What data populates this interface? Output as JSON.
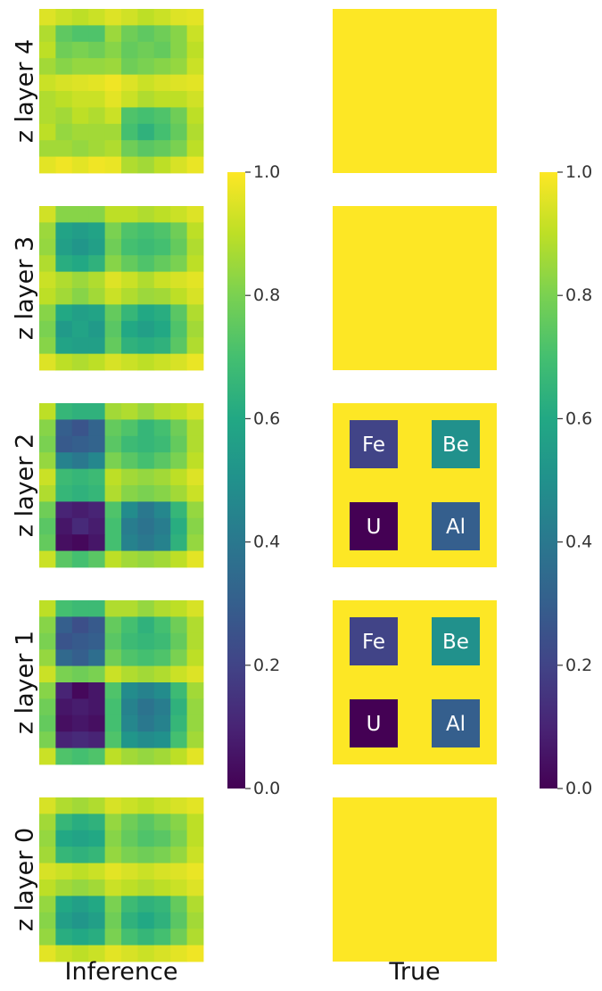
{
  "chart_data": {
    "type": "heatmap",
    "colormap": "viridis",
    "grid_size": [
      10,
      10
    ],
    "column_labels": [
      "Inference",
      "True"
    ],
    "layers": [
      {
        "label": "z layer 4",
        "inference": [
          [
            0.95,
            0.92,
            0.9,
            0.92,
            0.95,
            0.93,
            0.9,
            0.92,
            0.95,
            0.96
          ],
          [
            0.88,
            0.75,
            0.72,
            0.72,
            0.85,
            0.78,
            0.75,
            0.78,
            0.82,
            0.92
          ],
          [
            0.9,
            0.78,
            0.8,
            0.78,
            0.82,
            0.76,
            0.78,
            0.76,
            0.82,
            0.9
          ],
          [
            0.86,
            0.82,
            0.84,
            0.84,
            0.85,
            0.78,
            0.8,
            0.82,
            0.84,
            0.92
          ],
          [
            0.92,
            0.94,
            0.95,
            0.96,
            0.98,
            0.95,
            0.92,
            0.94,
            0.95,
            0.96
          ],
          [
            0.88,
            0.9,
            0.92,
            0.92,
            0.96,
            0.92,
            0.88,
            0.9,
            0.9,
            0.93
          ],
          [
            0.88,
            0.86,
            0.9,
            0.88,
            0.92,
            0.72,
            0.7,
            0.72,
            0.78,
            0.9
          ],
          [
            0.9,
            0.84,
            0.86,
            0.86,
            0.86,
            0.7,
            0.64,
            0.7,
            0.76,
            0.88
          ],
          [
            0.86,
            0.86,
            0.84,
            0.86,
            0.88,
            0.78,
            0.74,
            0.76,
            0.8,
            0.9
          ],
          [
            0.96,
            0.98,
            0.96,
            0.98,
            0.97,
            0.88,
            0.86,
            0.9,
            0.94,
            0.97
          ]
        ],
        "true": {
          "background": 1.0,
          "blocks": []
        }
      },
      {
        "label": "z layer 3",
        "inference": [
          [
            0.93,
            0.82,
            0.82,
            0.82,
            0.9,
            0.9,
            0.88,
            0.9,
            0.92,
            0.95
          ],
          [
            0.85,
            0.58,
            0.55,
            0.58,
            0.8,
            0.72,
            0.7,
            0.72,
            0.78,
            0.9
          ],
          [
            0.84,
            0.56,
            0.52,
            0.56,
            0.78,
            0.7,
            0.68,
            0.7,
            0.76,
            0.88
          ],
          [
            0.88,
            0.62,
            0.6,
            0.64,
            0.82,
            0.76,
            0.72,
            0.76,
            0.8,
            0.9
          ],
          [
            0.92,
            0.88,
            0.85,
            0.88,
            0.95,
            0.92,
            0.88,
            0.92,
            0.94,
            0.96
          ],
          [
            0.9,
            0.86,
            0.82,
            0.86,
            0.92,
            0.88,
            0.85,
            0.86,
            0.9,
            0.94
          ],
          [
            0.82,
            0.6,
            0.56,
            0.58,
            0.76,
            0.66,
            0.6,
            0.62,
            0.74,
            0.88
          ],
          [
            0.8,
            0.54,
            0.58,
            0.54,
            0.74,
            0.6,
            0.56,
            0.6,
            0.72,
            0.86
          ],
          [
            0.82,
            0.58,
            0.56,
            0.56,
            0.76,
            0.64,
            0.62,
            0.64,
            0.74,
            0.88
          ],
          [
            0.95,
            0.9,
            0.88,
            0.9,
            0.94,
            0.92,
            0.9,
            0.92,
            0.94,
            0.97
          ]
        ],
        "true": {
          "background": 1.0,
          "blocks": []
        }
      },
      {
        "label": "z layer 2",
        "inference": [
          [
            0.9,
            0.66,
            0.64,
            0.64,
            0.86,
            0.88,
            0.84,
            0.88,
            0.9,
            0.94
          ],
          [
            0.82,
            0.3,
            0.26,
            0.32,
            0.76,
            0.72,
            0.66,
            0.7,
            0.78,
            0.88
          ],
          [
            0.8,
            0.28,
            0.3,
            0.32,
            0.74,
            0.68,
            0.66,
            0.68,
            0.76,
            0.88
          ],
          [
            0.84,
            0.44,
            0.4,
            0.46,
            0.8,
            0.74,
            0.7,
            0.74,
            0.8,
            0.9
          ],
          [
            0.92,
            0.68,
            0.66,
            0.68,
            0.9,
            0.86,
            0.84,
            0.86,
            0.9,
            0.95
          ],
          [
            0.88,
            0.66,
            0.64,
            0.66,
            0.88,
            0.82,
            0.8,
            0.82,
            0.86,
            0.92
          ],
          [
            0.78,
            0.1,
            0.08,
            0.1,
            0.72,
            0.48,
            0.4,
            0.46,
            0.66,
            0.84
          ],
          [
            0.74,
            0.06,
            0.12,
            0.08,
            0.7,
            0.42,
            0.38,
            0.42,
            0.62,
            0.82
          ],
          [
            0.76,
            0.04,
            0.02,
            0.06,
            0.7,
            0.44,
            0.4,
            0.44,
            0.64,
            0.84
          ],
          [
            0.92,
            0.74,
            0.7,
            0.74,
            0.9,
            0.86,
            0.84,
            0.86,
            0.9,
            0.96
          ]
        ],
        "true": {
          "background": 1.0,
          "blocks": [
            {
              "label": "Fe",
              "value": 0.2,
              "pos": "top-left"
            },
            {
              "label": "Be",
              "value": 0.5,
              "pos": "top-right"
            },
            {
              "label": "U",
              "value": 0.0,
              "pos": "bottom-left"
            },
            {
              "label": "Al",
              "value": 0.3,
              "pos": "bottom-right"
            }
          ]
        }
      },
      {
        "label": "z layer 1",
        "inference": [
          [
            0.9,
            0.7,
            0.68,
            0.68,
            0.88,
            0.88,
            0.84,
            0.88,
            0.9,
            0.94
          ],
          [
            0.82,
            0.3,
            0.24,
            0.28,
            0.76,
            0.7,
            0.64,
            0.7,
            0.78,
            0.88
          ],
          [
            0.8,
            0.26,
            0.28,
            0.3,
            0.74,
            0.68,
            0.66,
            0.68,
            0.76,
            0.88
          ],
          [
            0.84,
            0.34,
            0.3,
            0.36,
            0.78,
            0.72,
            0.7,
            0.72,
            0.8,
            0.9
          ],
          [
            0.92,
            0.8,
            0.78,
            0.8,
            0.92,
            0.88,
            0.86,
            0.88,
            0.92,
            0.95
          ],
          [
            0.82,
            0.1,
            0.02,
            0.06,
            0.72,
            0.48,
            0.44,
            0.48,
            0.68,
            0.86
          ],
          [
            0.78,
            0.06,
            0.08,
            0.06,
            0.7,
            0.44,
            0.38,
            0.42,
            0.64,
            0.84
          ],
          [
            0.76,
            0.04,
            0.06,
            0.04,
            0.7,
            0.46,
            0.4,
            0.44,
            0.66,
            0.84
          ],
          [
            0.8,
            0.1,
            0.12,
            0.1,
            0.72,
            0.52,
            0.48,
            0.5,
            0.7,
            0.86
          ],
          [
            0.92,
            0.72,
            0.7,
            0.72,
            0.9,
            0.86,
            0.84,
            0.86,
            0.9,
            0.96
          ]
        ],
        "true": {
          "background": 1.0,
          "blocks": [
            {
              "label": "Fe",
              "value": 0.2,
              "pos": "top-left"
            },
            {
              "label": "Be",
              "value": 0.5,
              "pos": "top-right"
            },
            {
              "label": "U",
              "value": 0.0,
              "pos": "bottom-left"
            },
            {
              "label": "Al",
              "value": 0.3,
              "pos": "bottom-right"
            }
          ]
        }
      },
      {
        "label": "z layer 0",
        "inference": [
          [
            0.94,
            0.88,
            0.86,
            0.88,
            0.94,
            0.92,
            0.9,
            0.92,
            0.94,
            0.96
          ],
          [
            0.86,
            0.66,
            0.62,
            0.64,
            0.84,
            0.78,
            0.74,
            0.78,
            0.82,
            0.9
          ],
          [
            0.84,
            0.6,
            0.58,
            0.6,
            0.82,
            0.76,
            0.72,
            0.74,
            0.8,
            0.9
          ],
          [
            0.86,
            0.66,
            0.64,
            0.66,
            0.84,
            0.8,
            0.78,
            0.8,
            0.84,
            0.92
          ],
          [
            0.94,
            0.92,
            0.9,
            0.92,
            0.96,
            0.94,
            0.92,
            0.94,
            0.95,
            0.97
          ],
          [
            0.9,
            0.86,
            0.84,
            0.86,
            0.92,
            0.9,
            0.88,
            0.9,
            0.92,
            0.95
          ],
          [
            0.84,
            0.6,
            0.56,
            0.6,
            0.8,
            0.68,
            0.64,
            0.66,
            0.76,
            0.88
          ],
          [
            0.82,
            0.56,
            0.52,
            0.56,
            0.78,
            0.64,
            0.6,
            0.64,
            0.74,
            0.86
          ],
          [
            0.84,
            0.62,
            0.6,
            0.62,
            0.8,
            0.7,
            0.66,
            0.7,
            0.78,
            0.88
          ],
          [
            0.96,
            0.92,
            0.9,
            0.92,
            0.96,
            0.94,
            0.92,
            0.94,
            0.96,
            0.98
          ]
        ],
        "true": {
          "background": 1.0,
          "blocks": []
        }
      }
    ],
    "colorbars": [
      {
        "name": "inference-colorbar",
        "range": [
          0.0,
          1.0
        ],
        "ticks": [
          "0.0",
          "0.2",
          "0.4",
          "0.6",
          "0.8",
          "1.0"
        ]
      },
      {
        "name": "true-colorbar",
        "range": [
          0.0,
          1.0
        ],
        "ticks": [
          "0.0",
          "0.2",
          "0.4",
          "0.6",
          "0.8",
          "1.0"
        ]
      }
    ]
  }
}
